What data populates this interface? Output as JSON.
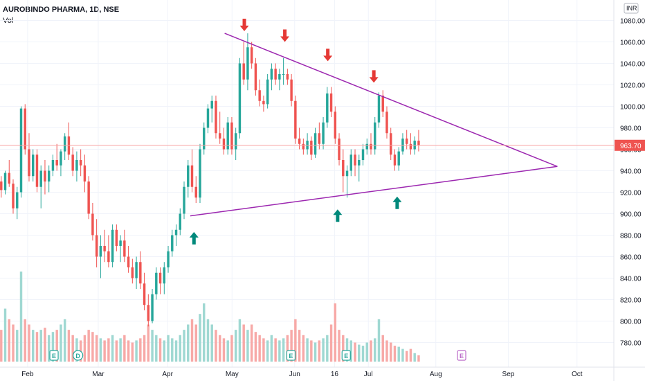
{
  "header": {
    "symbol": "AUROBINDO PHARMA, 1D, NSE",
    "volume_label": "Vol"
  },
  "currency_label": "INR",
  "chart_data": {
    "type": "candlestick",
    "ylim": [
      770,
      1090
    ],
    "y_ticks": [
      780,
      800,
      820,
      840,
      860,
      880,
      900,
      920,
      940,
      960,
      980,
      1000,
      1020,
      1040,
      1060,
      1080
    ],
    "y_tick_labels": [
      "780.00",
      "800.00",
      "820.00",
      "840.00",
      "860.00",
      "880.00",
      "900.00",
      "920.00",
      "940.00",
      "960.00",
      "980.00",
      "1000.00",
      "1020.00",
      "1040.00",
      "1060.00",
      "1080.00"
    ],
    "month_labels": [
      "Feb",
      "Mar",
      "Apr",
      "May",
      "Jun",
      "16",
      "Jul",
      "Aug",
      "Sep",
      "Oct"
    ],
    "month_positions": [
      0.045,
      0.16,
      0.273,
      0.378,
      0.48,
      0.545,
      0.6,
      0.71,
      0.828,
      0.94
    ],
    "current_price": 963.7,
    "current_price_label": "963.70",
    "colors": {
      "up": "#26a69a",
      "down": "#ef5350",
      "trend": "#9c27b0",
      "arrow_down": "#e53935",
      "arrow_up": "#00897b",
      "price_line": "#f7a1a1"
    },
    "trendlines": [
      {
        "name": "upper-resistance",
        "from": [
          0.366,
          1068
        ],
        "to": [
          0.908,
          944
        ]
      },
      {
        "name": "lower-support",
        "from": [
          0.31,
          898
        ],
        "to": [
          0.908,
          944
        ]
      }
    ],
    "arrows_down": [
      {
        "x": 0.398,
        "y": 1070
      },
      {
        "x": 0.464,
        "y": 1060
      },
      {
        "x": 0.534,
        "y": 1042
      },
      {
        "x": 0.609,
        "y": 1022
      }
    ],
    "arrows_up": [
      {
        "x": 0.316,
        "y": 883
      },
      {
        "x": 0.55,
        "y": 904
      },
      {
        "x": 0.647,
        "y": 916
      }
    ],
    "event_markers": [
      {
        "x": 0.088,
        "label": "E",
        "kind": "earnings"
      },
      {
        "x": 0.127,
        "label": "D",
        "kind": "dividend"
      },
      {
        "x": 0.474,
        "label": "E",
        "kind": "earnings"
      },
      {
        "x": 0.564,
        "label": "E",
        "kind": "earnings"
      },
      {
        "x": 0.752,
        "label": "E",
        "kind": "future-earnings"
      }
    ],
    "candles": [
      [
        930,
        935,
        915,
        922
      ],
      [
        922,
        940,
        918,
        938
      ],
      [
        938,
        950,
        925,
        928
      ],
      [
        928,
        932,
        900,
        905
      ],
      [
        905,
        925,
        895,
        920
      ],
      [
        920,
        1000,
        915,
        998
      ],
      [
        998,
        1002,
        955,
        960
      ],
      [
        960,
        975,
        930,
        935
      ],
      [
        935,
        960,
        930,
        955
      ],
      [
        955,
        960,
        920,
        925
      ],
      [
        925,
        945,
        905,
        940
      ],
      [
        940,
        950,
        918,
        930
      ],
      [
        930,
        945,
        920,
        940
      ],
      [
        940,
        955,
        935,
        950
      ],
      [
        950,
        965,
        940,
        945
      ],
      [
        945,
        960,
        935,
        958
      ],
      [
        958,
        975,
        950,
        972
      ],
      [
        972,
        985,
        950,
        955
      ],
      [
        955,
        962,
        935,
        940
      ],
      [
        940,
        958,
        930,
        950
      ],
      [
        950,
        960,
        935,
        945
      ],
      [
        945,
        955,
        920,
        930
      ],
      [
        930,
        935,
        895,
        900
      ],
      [
        900,
        910,
        875,
        880
      ],
      [
        880,
        895,
        850,
        860
      ],
      [
        860,
        880,
        840,
        870
      ],
      [
        870,
        885,
        855,
        865
      ],
      [
        865,
        880,
        850,
        855
      ],
      [
        855,
        890,
        850,
        885
      ],
      [
        885,
        890,
        865,
        870
      ],
      [
        870,
        880,
        855,
        875
      ],
      [
        875,
        885,
        855,
        860
      ],
      [
        860,
        870,
        845,
        850
      ],
      [
        850,
        858,
        835,
        840
      ],
      [
        840,
        860,
        830,
        855
      ],
      [
        855,
        865,
        830,
        835
      ],
      [
        835,
        845,
        810,
        815
      ],
      [
        815,
        825,
        795,
        800
      ],
      [
        800,
        830,
        798,
        825
      ],
      [
        825,
        850,
        820,
        845
      ],
      [
        845,
        850,
        825,
        835
      ],
      [
        835,
        855,
        825,
        850
      ],
      [
        850,
        870,
        845,
        865
      ],
      [
        865,
        885,
        860,
        880
      ],
      [
        880,
        890,
        870,
        885
      ],
      [
        885,
        905,
        880,
        900
      ],
      [
        900,
        930,
        895,
        925
      ],
      [
        925,
        950,
        915,
        945
      ],
      [
        945,
        960,
        920,
        925
      ],
      [
        925,
        935,
        910,
        915
      ],
      [
        915,
        965,
        910,
        960
      ],
      [
        960,
        985,
        955,
        980
      ],
      [
        980,
        1002,
        975,
        998
      ],
      [
        998,
        1010,
        985,
        1005
      ],
      [
        1005,
        1010,
        970,
        975
      ],
      [
        975,
        995,
        965,
        970
      ],
      [
        970,
        980,
        955,
        960
      ],
      [
        960,
        990,
        955,
        985
      ],
      [
        985,
        990,
        955,
        960
      ],
      [
        960,
        980,
        950,
        975
      ],
      [
        975,
        1045,
        970,
        1040
      ],
      [
        1040,
        1060,
        1020,
        1025
      ],
      [
        1025,
        1068,
        1015,
        1055
      ],
      [
        1055,
        1060,
        1035,
        1040
      ],
      [
        1040,
        1045,
        1010,
        1015
      ],
      [
        1015,
        1025,
        1000,
        1005
      ],
      [
        1005,
        1010,
        995,
        1002
      ],
      [
        1002,
        1030,
        998,
        1025
      ],
      [
        1025,
        1040,
        1015,
        1035
      ],
      [
        1035,
        1040,
        1020,
        1025
      ],
      [
        1025,
        1035,
        1015,
        1030
      ],
      [
        1030,
        1045,
        1020,
        1030
      ],
      [
        1030,
        1035,
        1020,
        1025
      ],
      [
        1025,
        1030,
        1000,
        1005
      ],
      [
        1005,
        1010,
        965,
        970
      ],
      [
        970,
        980,
        960,
        965
      ],
      [
        965,
        970,
        955,
        960
      ],
      [
        960,
        975,
        955,
        968
      ],
      [
        968,
        972,
        950,
        955
      ],
      [
        955,
        980,
        952,
        975
      ],
      [
        975,
        985,
        960,
        965
      ],
      [
        965,
        990,
        960,
        985
      ],
      [
        985,
        1018,
        980,
        1012
      ],
      [
        1012,
        1018,
        990,
        995
      ],
      [
        995,
        1000,
        965,
        970
      ],
      [
        970,
        975,
        945,
        950
      ],
      [
        950,
        960,
        920,
        935
      ],
      [
        935,
        945,
        915,
        940
      ],
      [
        940,
        960,
        935,
        955
      ],
      [
        955,
        960,
        935,
        945
      ],
      [
        945,
        955,
        930,
        950
      ],
      [
        950,
        965,
        945,
        960
      ],
      [
        960,
        970,
        955,
        965
      ],
      [
        965,
        975,
        955,
        960
      ],
      [
        960,
        990,
        955,
        985
      ],
      [
        985,
        1013,
        980,
        1010
      ],
      [
        1010,
        1015,
        990,
        995
      ],
      [
        995,
        1000,
        970,
        975
      ],
      [
        975,
        980,
        950,
        955
      ],
      [
        955,
        960,
        940,
        945
      ],
      [
        945,
        962,
        940,
        958
      ],
      [
        958,
        975,
        955,
        970
      ],
      [
        970,
        978,
        960,
        965
      ],
      [
        965,
        975,
        955,
        960
      ],
      [
        960,
        972,
        955,
        968
      ],
      [
        968,
        978,
        958,
        963.7
      ]
    ],
    "volumes": [
      30,
      50,
      40,
      35,
      30,
      85,
      40,
      35,
      30,
      28,
      30,
      32,
      25,
      28,
      30,
      35,
      40,
      30,
      25,
      22,
      20,
      25,
      30,
      28,
      25,
      22,
      20,
      22,
      25,
      20,
      22,
      25,
      20,
      18,
      20,
      22,
      25,
      35,
      30,
      25,
      22,
      20,
      25,
      22,
      20,
      25,
      30,
      35,
      40,
      35,
      45,
      55,
      40,
      35,
      30,
      25,
      22,
      20,
      25,
      30,
      40,
      35,
      30,
      35,
      28,
      25,
      22,
      20,
      25,
      22,
      20,
      22,
      25,
      30,
      40,
      30,
      25,
      22,
      20,
      18,
      20,
      22,
      25,
      35,
      55,
      30,
      25,
      22,
      20,
      18,
      16,
      15,
      18,
      20,
      22,
      40,
      25,
      20,
      18,
      15,
      14,
      12,
      10,
      12,
      8,
      6
    ]
  }
}
